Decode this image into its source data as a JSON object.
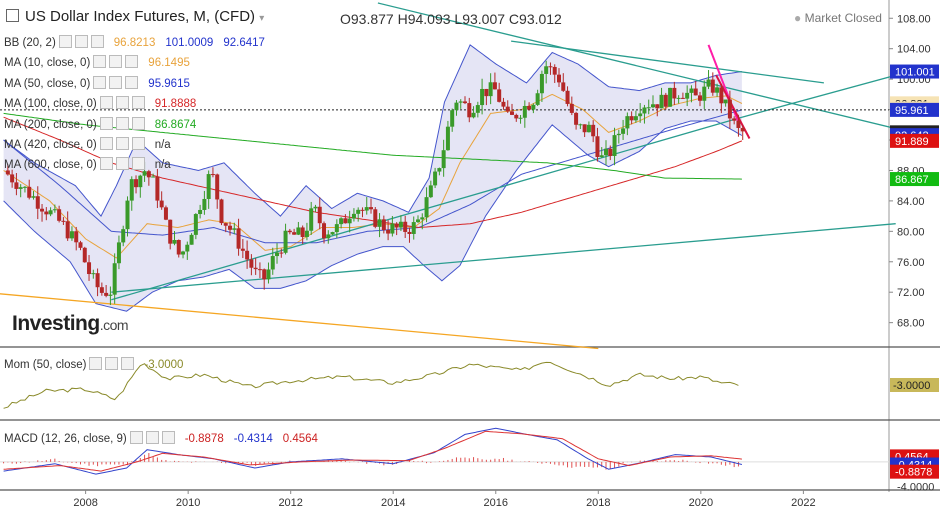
{
  "header": {
    "title": "US Dollar Index Futures, M, (CFD)",
    "ohlc": "O93.877   H94.093   L93.007   C93.012",
    "status": "Market Closed"
  },
  "indicators": [
    {
      "label": "BB (20, 2)",
      "values": [
        "96.8213",
        "101.0009",
        "92.6417"
      ],
      "colors": [
        "#e8a33c",
        "#2233cc",
        "#2233cc"
      ]
    },
    {
      "label": "MA (10, close, 0)",
      "values": [
        "96.1495"
      ],
      "colors": [
        "#e8a33c"
      ]
    },
    {
      "label": "MA (50, close, 0)",
      "values": [
        "95.9615"
      ],
      "colors": [
        "#2233cc"
      ]
    },
    {
      "label": "MA (100, close, 0)",
      "values": [
        "91.8888"
      ],
      "colors": [
        "#d62728"
      ]
    },
    {
      "label": "MA (200, close, 0)",
      "values": [
        "86.8674"
      ],
      "colors": [
        "#22aa22"
      ]
    },
    {
      "label": "MA (420, close, 0)",
      "values": [
        "n/a"
      ],
      "colors": [
        "#333333"
      ]
    },
    {
      "label": "MA (600, close, 0)",
      "values": [
        "n/a"
      ],
      "colors": [
        "#333333"
      ]
    }
  ],
  "logo": {
    "name": "Investing",
    "suffix": ".com"
  },
  "momentum": {
    "label": "Mom (50, close)",
    "value": "-3.0000"
  },
  "macd": {
    "label": "MACD (12, 26, close, 9)",
    "values": [
      "-0.8878",
      "-0.4314",
      "0.4564"
    ],
    "colors": [
      "#cc2222",
      "#2233cc",
      "#cc2222"
    ]
  },
  "colors": {
    "up": "#3a9a2a",
    "down": "#b42828",
    "bbFill": "#dcdcf2",
    "bbLine": "#4455cc",
    "ma10": "#e8a33c",
    "ma50": "#4455cc",
    "ma100": "#d62728",
    "ma200": "#22aa22",
    "trend": "#2a9d8f",
    "orange": "#f5a623",
    "pink": "#ff1ea8",
    "momLine": "#8a8a2a"
  },
  "chart_data": {
    "type": "candlestick",
    "title": "US Dollar Index Futures, M, (CFD)",
    "x_ticks": [
      "2008",
      "2010",
      "2012",
      "2014",
      "2016",
      "2018",
      "2020",
      "2022"
    ],
    "y_ticks": [
      68,
      72,
      76,
      80,
      84,
      88,
      92,
      96,
      100,
      104,
      108
    ],
    "ylim": [
      64.8,
      110.4
    ],
    "xlim": [
      2006.33,
      2023.67
    ],
    "price_tags": [
      {
        "label": "101.001",
        "value": 101.0,
        "bg": "#2233cc",
        "fg": "#ffffff"
      },
      {
        "label": "96.821",
        "value": 96.82,
        "bg": "#f6e3b4",
        "fg": "#222222"
      },
      {
        "label": "96.150",
        "value": 96.15,
        "bg": "#f6e3b4",
        "fg": "#222222"
      },
      {
        "label": "95.961",
        "value": 95.96,
        "bg": "#2233cc",
        "fg": "#ffffff"
      },
      {
        "label": "93.012",
        "value": 93.01,
        "bg": "#222222",
        "fg": "#ffffff"
      },
      {
        "label": "92.642",
        "value": 92.64,
        "bg": "#2233cc",
        "fg": "#ffffff"
      },
      {
        "label": "91.889",
        "value": 91.89,
        "bg": "#dd1111",
        "fg": "#ffffff"
      },
      {
        "label": "86.867",
        "value": 86.87,
        "bg": "#11bb11",
        "fg": "#ffffff"
      }
    ],
    "price_anchors": [
      [
        2006.4,
        88
      ],
      [
        2006.9,
        85
      ],
      [
        2007.3,
        82.5
      ],
      [
        2007.6,
        80.5
      ],
      [
        2007.9,
        77.5
      ],
      [
        2008.1,
        74
      ],
      [
        2008.3,
        72
      ],
      [
        2008.5,
        72.2
      ],
      [
        2008.65,
        78
      ],
      [
        2008.85,
        86
      ],
      [
        2009.15,
        88
      ],
      [
        2009.35,
        86
      ],
      [
        2009.6,
        80
      ],
      [
        2009.85,
        76.5
      ],
      [
        2010.05,
        80
      ],
      [
        2010.35,
        86
      ],
      [
        2010.45,
        88
      ],
      [
        2010.65,
        82
      ],
      [
        2010.95,
        79
      ],
      [
        2011.1,
        77
      ],
      [
        2011.35,
        74
      ],
      [
        2011.5,
        73.8
      ],
      [
        2011.7,
        77
      ],
      [
        2011.95,
        79.5
      ],
      [
        2012.25,
        79.5
      ],
      [
        2012.45,
        83
      ],
      [
        2012.65,
        80
      ],
      [
        2012.95,
        80.5
      ],
      [
        2013.25,
        83.5
      ],
      [
        2013.55,
        82
      ],
      [
        2013.85,
        80.5
      ],
      [
        2014.2,
        80.2
      ],
      [
        2014.45,
        80.8
      ],
      [
        2014.75,
        85.5
      ],
      [
        2014.95,
        90
      ],
      [
        2015.2,
        97.5
      ],
      [
        2015.5,
        96
      ],
      [
        2015.75,
        98.5
      ],
      [
        2016.0,
        98.5
      ],
      [
        2016.25,
        94.5
      ],
      [
        2016.5,
        96
      ],
      [
        2016.75,
        97.5
      ],
      [
        2016.95,
        102
      ],
      [
        2017.25,
        100
      ],
      [
        2017.55,
        93.5
      ],
      [
        2017.85,
        93.5
      ],
      [
        2018.05,
        89.5
      ],
      [
        2018.2,
        90
      ],
      [
        2018.5,
        94.5
      ],
      [
        2018.85,
        96.8
      ],
      [
        2019.2,
        97
      ],
      [
        2019.6,
        98.5
      ],
      [
        2019.9,
        97.5
      ],
      [
        2020.2,
        99.2
      ],
      [
        2020.35,
        98
      ],
      [
        2020.55,
        95.5
      ],
      [
        2020.7,
        93.2
      ],
      [
        2020.8,
        93.0
      ]
    ],
    "bb_upper": [
      [
        2006.4,
        92
      ],
      [
        2007,
        89
      ],
      [
        2007.8,
        86
      ],
      [
        2008.3,
        82
      ],
      [
        2008.6,
        86
      ],
      [
        2009.0,
        92
      ],
      [
        2009.5,
        89
      ],
      [
        2010.2,
        88
      ],
      [
        2010.7,
        89
      ],
      [
        2011.3,
        85
      ],
      [
        2011.8,
        82
      ],
      [
        2012.3,
        86
      ],
      [
        2012.8,
        83
      ],
      [
        2013.3,
        85
      ],
      [
        2013.8,
        84
      ],
      [
        2014.3,
        82.5
      ],
      [
        2014.7,
        87
      ],
      [
        2015.0,
        97
      ],
      [
        2015.5,
        104.5
      ],
      [
        2016.0,
        102
      ],
      [
        2016.6,
        99.5
      ],
      [
        2017.1,
        103.5
      ],
      [
        2017.6,
        102
      ],
      [
        2018.2,
        99
      ],
      [
        2018.8,
        98.5
      ],
      [
        2019.3,
        99.5
      ],
      [
        2019.8,
        99.5
      ],
      [
        2020.3,
        100.5
      ],
      [
        2020.8,
        101
      ]
    ],
    "bb_lower": [
      [
        2006.4,
        84
      ],
      [
        2007,
        80
      ],
      [
        2007.7,
        76
      ],
      [
        2008.2,
        70.5
      ],
      [
        2008.8,
        69.5
      ],
      [
        2009.3,
        72
      ],
      [
        2009.8,
        73.5
      ],
      [
        2010.3,
        74
      ],
      [
        2010.8,
        75
      ],
      [
        2011.3,
        72.5
      ],
      [
        2011.8,
        72.5
      ],
      [
        2012.3,
        73.5
      ],
      [
        2012.8,
        75.5
      ],
      [
        2013.3,
        77
      ],
      [
        2013.8,
        78
      ],
      [
        2014.2,
        78
      ],
      [
        2014.6,
        75.5
      ],
      [
        2014.95,
        73.5
      ],
      [
        2015.3,
        75.5
      ],
      [
        2015.8,
        82
      ],
      [
        2016.4,
        88
      ],
      [
        2017.1,
        94
      ],
      [
        2017.8,
        90
      ],
      [
        2018.2,
        88.5
      ],
      [
        2018.8,
        90.5
      ],
      [
        2019.3,
        93.5
      ],
      [
        2019.8,
        94.5
      ],
      [
        2020.3,
        94.5
      ],
      [
        2020.8,
        92.6
      ]
    ],
    "bb_mid": [
      [
        2006.4,
        88
      ],
      [
        2007.3,
        84
      ],
      [
        2008.0,
        79
      ],
      [
        2008.6,
        76.5
      ],
      [
        2009.2,
        81
      ],
      [
        2009.8,
        80.5
      ],
      [
        2010.4,
        81.5
      ],
      [
        2010.9,
        81
      ],
      [
        2011.5,
        77.5
      ],
      [
        2012.0,
        78
      ],
      [
        2012.6,
        80.5
      ],
      [
        2013.2,
        80.5
      ],
      [
        2013.8,
        81
      ],
      [
        2014.4,
        80.5
      ],
      [
        2014.9,
        83
      ],
      [
        2015.3,
        89
      ],
      [
        2015.9,
        95.5
      ],
      [
        2016.5,
        96
      ],
      [
        2017.1,
        98
      ],
      [
        2017.7,
        96
      ],
      [
        2018.2,
        93
      ],
      [
        2018.8,
        94.5
      ],
      [
        2019.4,
        96.5
      ],
      [
        2020.0,
        97.5
      ],
      [
        2020.5,
        97.8
      ],
      [
        2020.8,
        96.8
      ]
    ],
    "ma50": [
      [
        2006.4,
        92
      ],
      [
        2007.5,
        86
      ],
      [
        2008.5,
        80
      ],
      [
        2009.5,
        79.5
      ],
      [
        2010.5,
        80.5
      ],
      [
        2011.5,
        78.5
      ],
      [
        2012.5,
        78.5
      ],
      [
        2013.5,
        80
      ],
      [
        2014.5,
        80.5
      ],
      [
        2015.5,
        83.5
      ],
      [
        2016.5,
        87.5
      ],
      [
        2017.5,
        89.5
      ],
      [
        2018.5,
        91.5
      ],
      [
        2019.5,
        93.5
      ],
      [
        2020.3,
        95
      ],
      [
        2020.8,
        95.96
      ]
    ],
    "ma100": [
      [
        2006.4,
        95
      ],
      [
        2007.5,
        92
      ],
      [
        2008.5,
        89
      ],
      [
        2009.5,
        87
      ],
      [
        2010.5,
        85.5
      ],
      [
        2011.5,
        84
      ],
      [
        2012.5,
        82.5
      ],
      [
        2013.5,
        81.5
      ],
      [
        2014.5,
        80.5
      ],
      [
        2015.5,
        81
      ],
      [
        2016.5,
        82.5
      ],
      [
        2017.5,
        84.5
      ],
      [
        2018.5,
        86.5
      ],
      [
        2019.5,
        88.5
      ],
      [
        2020.3,
        90.5
      ],
      [
        2020.8,
        91.89
      ]
    ],
    "ma200": [
      [
        2006.4,
        95.5
      ],
      [
        2008,
        94
      ],
      [
        2009.5,
        93
      ],
      [
        2011,
        92
      ],
      [
        2012.5,
        91
      ],
      [
        2014,
        90
      ],
      [
        2015.5,
        89.5
      ],
      [
        2017,
        89
      ],
      [
        2018.3,
        88
      ],
      [
        2019.3,
        87
      ],
      [
        2020.8,
        86.87
      ]
    ],
    "trendlines": [
      {
        "color": "#2a9d8f",
        "points": [
          [
            2008.5,
            71
          ],
          [
            2020.8,
            95
          ]
        ]
      },
      {
        "color": "#2a9d8f",
        "points": [
          [
            2008.5,
            72
          ],
          [
            2023.8,
            81
          ]
        ]
      },
      {
        "color": "#2a9d8f",
        "points": [
          [
            2013.7,
            110
          ],
          [
            2023.8,
            93.5
          ]
        ]
      },
      {
        "color": "#2a9d8f",
        "points": [
          [
            2016.3,
            105
          ],
          [
            2022.4,
            99.5
          ]
        ]
      },
      {
        "color": "#2a9d8f",
        "points": [
          [
            2020.8,
            95
          ],
          [
            2023.8,
            100.5
          ]
        ]
      },
      {
        "color": "#f5a623",
        "points": [
          [
            2006.3,
            71.8
          ],
          [
            2018.0,
            64.6
          ]
        ]
      },
      {
        "color": "#ff1ea8",
        "points": [
          [
            2020.15,
            104.5
          ],
          [
            2020.75,
            94
          ]
        ]
      },
      {
        "color": "#dd1144",
        "points": [
          [
            2020.3,
            100.5
          ],
          [
            2020.95,
            92.2
          ]
        ]
      }
    ],
    "momentum": {
      "ylim": [
        -20,
        14
      ],
      "zero_label": "-3.0000",
      "anchors": [
        [
          2006.4,
          -14
        ],
        [
          2007.2,
          -6
        ],
        [
          2008.0,
          -5
        ],
        [
          2008.6,
          -10
        ],
        [
          2009.1,
          8
        ],
        [
          2009.6,
          0
        ],
        [
          2010.3,
          2
        ],
        [
          2011.2,
          -4
        ],
        [
          2012.0,
          -1
        ],
        [
          2013.0,
          1
        ],
        [
          2014.0,
          -2
        ],
        [
          2014.8,
          2
        ],
        [
          2015.5,
          7
        ],
        [
          2016.5,
          4
        ],
        [
          2017.0,
          9
        ],
        [
          2017.6,
          3
        ],
        [
          2018.2,
          -3
        ],
        [
          2018.8,
          2
        ],
        [
          2019.5,
          0
        ],
        [
          2020.0,
          1
        ],
        [
          2020.4,
          -2
        ],
        [
          2020.8,
          -3
        ]
      ]
    },
    "macd": {
      "ylim": [
        -4.6,
        6.2
      ],
      "y_ticks": [
        -4
      ],
      "macd_anchors": [
        [
          2006.4,
          -1.5
        ],
        [
          2007.4,
          -0.3
        ],
        [
          2008.2,
          -2
        ],
        [
          2008.8,
          -1
        ],
        [
          2009.2,
          2
        ],
        [
          2009.8,
          1.2
        ],
        [
          2010.5,
          0.5
        ],
        [
          2011.3,
          -1
        ],
        [
          2012.0,
          0
        ],
        [
          2013.0,
          0.5
        ],
        [
          2014.0,
          -0.3
        ],
        [
          2014.8,
          1.5
        ],
        [
          2015.4,
          4.5
        ],
        [
          2016.0,
          5.5
        ],
        [
          2016.6,
          4.5
        ],
        [
          2017.2,
          3.6
        ],
        [
          2017.8,
          0.5
        ],
        [
          2018.2,
          -1.2
        ],
        [
          2018.8,
          -0.2
        ],
        [
          2019.5,
          1.2
        ],
        [
          2020.2,
          0.8
        ],
        [
          2020.8,
          -0.43
        ]
      ],
      "signal_anchors": [
        [
          2006.4,
          -1.2
        ],
        [
          2007.5,
          -0.6
        ],
        [
          2008.3,
          -1.5
        ],
        [
          2009.0,
          0
        ],
        [
          2009.5,
          1.4
        ],
        [
          2010.3,
          0.8
        ],
        [
          2011.2,
          -0.5
        ],
        [
          2012.2,
          0
        ],
        [
          2013.2,
          0.3
        ],
        [
          2014.3,
          0.2
        ],
        [
          2015.0,
          2.2
        ],
        [
          2015.8,
          5
        ],
        [
          2016.5,
          4.6
        ],
        [
          2017.3,
          3.8
        ],
        [
          2018.0,
          0.5
        ],
        [
          2018.6,
          -0.6
        ],
        [
          2019.4,
          0.8
        ],
        [
          2020.2,
          1.0
        ],
        [
          2020.8,
          0.46
        ]
      ]
    }
  }
}
